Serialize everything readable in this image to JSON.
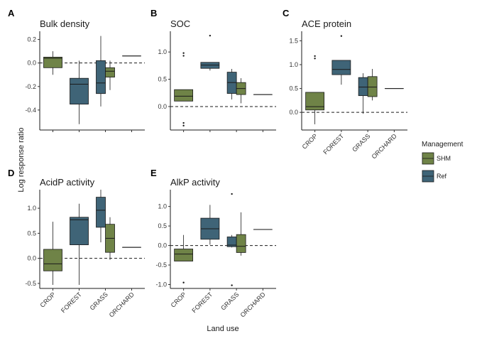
{
  "figure": {
    "ylabel": "Log response ratio",
    "xlabel": "Land use",
    "legend": {
      "title": "Management",
      "placement": "right",
      "items": [
        {
          "name": "SHM",
          "color": "#6f8347"
        },
        {
          "name": "Ref",
          "color": "#3f6477"
        }
      ]
    }
  },
  "chart_data": [
    {
      "type": "boxplot",
      "letter": "A",
      "title": "Bulk density",
      "categories": [
        "CROP",
        "FOREST",
        "GRASS",
        "ORCHARD"
      ],
      "show_x_tick_labels": false,
      "ylim": [
        -0.57,
        0.27
      ],
      "yticks": [
        -0.4,
        -0.2,
        0.0,
        0.2
      ],
      "ytick_labels": [
        "-0.4",
        "-0.2",
        "0.0",
        "0.2"
      ],
      "reference_line": 0,
      "boxes": [
        {
          "category": "CROP",
          "group": "SHM",
          "whisker_low": -0.1,
          "q1": -0.04,
          "median": 0.04,
          "q3": 0.05,
          "whisker_high": 0.1,
          "outliers": []
        },
        {
          "category": "FOREST",
          "group": "Ref",
          "whisker_low": -0.52,
          "q1": -0.35,
          "median": -0.18,
          "q3": -0.13,
          "whisker_high": 0.02,
          "outliers": []
        },
        {
          "category": "GRASS",
          "group": "Ref",
          "whisker_low": -0.37,
          "q1": -0.26,
          "median": -0.17,
          "q3": 0.02,
          "whisker_high": 0.23,
          "outliers": []
        },
        {
          "category": "GRASS",
          "group": "SHM",
          "whisker_low": -0.23,
          "q1": -0.12,
          "median": -0.07,
          "q3": -0.04,
          "whisker_high": 0.02,
          "outliers": []
        },
        {
          "category": "ORCHARD",
          "group": "Ref",
          "whisker_low": 0.06,
          "q1": 0.06,
          "median": 0.06,
          "q3": 0.06,
          "whisker_high": 0.06,
          "outliers": []
        }
      ]
    },
    {
      "type": "boxplot",
      "letter": "B",
      "title": "SOC",
      "categories": [
        "CROP",
        "FOREST",
        "GRASS",
        "ORCHARD"
      ],
      "show_x_tick_labels": false,
      "ylim": [
        -0.43,
        1.38
      ],
      "yticks": [
        0.0,
        0.5,
        1.0
      ],
      "ytick_labels": [
        "0.0",
        "0.5",
        "1.0"
      ],
      "reference_line": 0,
      "boxes": [
        {
          "category": "CROP",
          "group": "SHM",
          "whisker_low": 0.1,
          "q1": 0.1,
          "median": 0.19,
          "q3": 0.31,
          "whisker_high": 0.31,
          "outliers": [
            -0.3,
            -0.35,
            0.93,
            0.98
          ]
        },
        {
          "category": "FOREST",
          "group": "Ref",
          "whisker_low": 0.66,
          "q1": 0.7,
          "median": 0.76,
          "q3": 0.81,
          "whisker_high": 0.81,
          "outliers": [
            1.3
          ]
        },
        {
          "category": "GRASS",
          "group": "Ref",
          "whisker_low": 0.13,
          "q1": 0.24,
          "median": 0.44,
          "q3": 0.63,
          "whisker_high": 0.69,
          "outliers": []
        },
        {
          "category": "GRASS",
          "group": "SHM",
          "whisker_low": 0.06,
          "q1": 0.22,
          "median": 0.33,
          "q3": 0.44,
          "whisker_high": 0.52,
          "outliers": []
        },
        {
          "category": "ORCHARD",
          "group": "Ref",
          "whisker_low": 0.22,
          "q1": 0.22,
          "median": 0.22,
          "q3": 0.22,
          "whisker_high": 0.22,
          "outliers": []
        }
      ]
    },
    {
      "type": "boxplot",
      "letter": "C",
      "title": "ACE protein",
      "categories": [
        "CROP",
        "FOREST",
        "GRASS",
        "ORCHARD"
      ],
      "show_x_tick_labels": true,
      "ylim": [
        -0.37,
        1.7
      ],
      "yticks": [
        0.0,
        0.5,
        1.0,
        1.5
      ],
      "ytick_labels": [
        "0.0",
        "0.5",
        "1.0",
        "1.5"
      ],
      "reference_line": 0,
      "boxes": [
        {
          "category": "CROP",
          "group": "SHM",
          "whisker_low": -0.25,
          "q1": 0.05,
          "median": 0.12,
          "q3": 0.42,
          "whisker_high": 0.42,
          "outliers": [
            1.13,
            1.18
          ]
        },
        {
          "category": "FOREST",
          "group": "Ref",
          "whisker_low": 0.58,
          "q1": 0.79,
          "median": 0.9,
          "q3": 1.09,
          "whisker_high": 1.09,
          "outliers": [
            1.6
          ]
        },
        {
          "category": "GRASS",
          "group": "Ref",
          "whisker_low": -0.03,
          "q1": 0.35,
          "median": 0.53,
          "q3": 0.73,
          "whisker_high": 0.82,
          "outliers": []
        },
        {
          "category": "GRASS",
          "group": "SHM",
          "whisker_low": 0.25,
          "q1": 0.33,
          "median": 0.53,
          "q3": 0.75,
          "whisker_high": 0.91,
          "outliers": []
        },
        {
          "category": "ORCHARD",
          "group": "Ref",
          "whisker_low": 0.5,
          "q1": 0.5,
          "median": 0.5,
          "q3": 0.5,
          "whisker_high": 0.5,
          "outliers": []
        }
      ]
    },
    {
      "type": "boxplot",
      "letter": "D",
      "title": "AcidP activity",
      "categories": [
        "CROP",
        "FOREST",
        "GRASS",
        "ORCHARD"
      ],
      "show_x_tick_labels": true,
      "ylim": [
        -0.6,
        1.37
      ],
      "yticks": [
        -0.5,
        0.0,
        0.5,
        1.0
      ],
      "ytick_labels": [
        "-0.5",
        "0.0",
        "0.5",
        "1.0"
      ],
      "reference_line": 0,
      "boxes": [
        {
          "category": "CROP",
          "group": "SHM",
          "whisker_low": -0.53,
          "q1": -0.25,
          "median": -0.11,
          "q3": 0.18,
          "whisker_high": 0.73,
          "outliers": []
        },
        {
          "category": "FOREST",
          "group": "Ref",
          "whisker_low": -0.53,
          "q1": 0.27,
          "median": 0.77,
          "q3": 0.82,
          "whisker_high": 1.09,
          "outliers": []
        },
        {
          "category": "GRASS",
          "group": "Ref",
          "whisker_low": 0.32,
          "q1": 0.62,
          "median": 0.96,
          "q3": 1.22,
          "whisker_high": 1.37,
          "outliers": []
        },
        {
          "category": "GRASS",
          "group": "SHM",
          "whisker_low": -0.03,
          "q1": 0.12,
          "median": 0.4,
          "q3": 0.68,
          "whisker_high": 0.82,
          "outliers": []
        },
        {
          "category": "ORCHARD",
          "group": "Ref",
          "whisker_low": 0.22,
          "q1": 0.22,
          "median": 0.22,
          "q3": 0.22,
          "whisker_high": 0.22,
          "outliers": []
        }
      ]
    },
    {
      "type": "boxplot",
      "letter": "E",
      "title": "AlkP activity",
      "categories": [
        "CROP",
        "FOREST",
        "GRASS",
        "ORCHARD"
      ],
      "show_x_tick_labels": true,
      "ylim": [
        -1.1,
        1.43
      ],
      "yticks": [
        -1.0,
        -0.5,
        0.0,
        0.5,
        1.0
      ],
      "ytick_labels": [
        "-1.0",
        "-0.5",
        "0.0",
        "0.5",
        "1.0"
      ],
      "reference_line": 0,
      "boxes": [
        {
          "category": "CROP",
          "group": "SHM",
          "whisker_low": -0.4,
          "q1": -0.4,
          "median": -0.22,
          "q3": -0.09,
          "whisker_high": 0.27,
          "outliers": [
            -0.95
          ]
        },
        {
          "category": "FOREST",
          "group": "Ref",
          "whisker_low": 0.02,
          "q1": 0.16,
          "median": 0.43,
          "q3": 0.7,
          "whisker_high": 1.04,
          "outliers": []
        },
        {
          "category": "GRASS",
          "group": "Ref",
          "whisker_low": -0.05,
          "q1": -0.03,
          "median": 0.01,
          "q3": 0.22,
          "whisker_high": 0.27,
          "outliers": [
            -1.02,
            1.32
          ]
        },
        {
          "category": "GRASS",
          "group": "SHM",
          "whisker_low": -0.26,
          "q1": -0.18,
          "median": -0.02,
          "q3": 0.28,
          "whisker_high": 0.85,
          "outliers": []
        },
        {
          "category": "ORCHARD",
          "group": "Ref",
          "whisker_low": 0.41,
          "q1": 0.41,
          "median": 0.41,
          "q3": 0.41,
          "whisker_high": 0.41,
          "outliers": []
        }
      ]
    }
  ]
}
